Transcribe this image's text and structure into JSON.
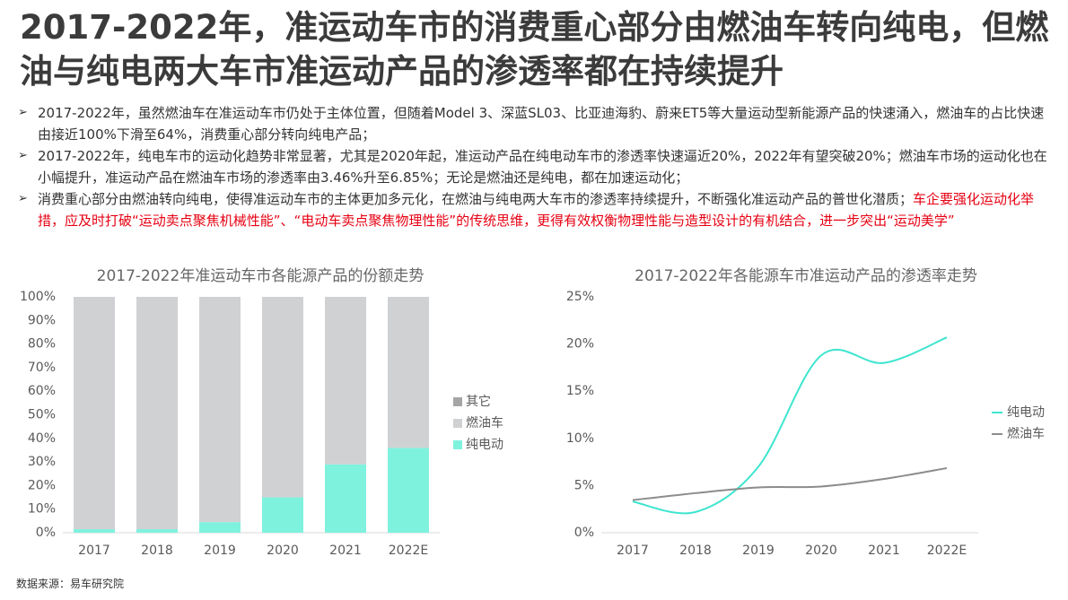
{
  "title": "2017-2022年，准运动车市的消费重心部分由燃油车转向纯电，但燃油与纯电两大车市准运动产品的渗透率都在持续提升",
  "bullets": [
    {
      "parts": [
        "2017-2022年，虽然燃油车在准运动车市仍处于主体位置，但随着Model 3、深蓝SL03、比亚迪海豹、蔚来ET5等大量运动型新能源产品的快速涌入，燃油车的占比快速由接近100%下滑至64%，消费重心部分转向纯电产品；"
      ]
    },
    {
      "parts": [
        "2017-2022年，纯电车市的运动化趋势非常显著，尤其是2020年起，准运动产品在纯电动车市的渗透率快速逼近20%，2022年有望突破20%；燃油车市场的运动化也在小幅提升，准运动产品在燃油车市场的渗透率由3.46%升至6.85%；无论是燃油还是纯电，都在加速运动化；"
      ]
    },
    {
      "parts": [
        "消费重心部分由燃油转向纯电，使得准运动车市的主体更加多元化，在燃油与纯电两大车市的渗透率持续提升，不断强化准运动产品的普世化潜质；",
        "车企要强化运动化举措，应及时打破“运动卖点聚焦机械性能”、“电动车卖点聚焦物理性能”的传统思维，更得有效权衡物理性能与造型设计的有机结合，进一步突出“运动美学”"
      ]
    }
  ],
  "source": "数据来源：易车研究院",
  "chart_data": [
    {
      "type": "stacked-bar",
      "title": "2017-2022年准运动车市各能源产品的份额走势",
      "categories": [
        "2017",
        "2018",
        "2019",
        "2020",
        "2021",
        "2022E"
      ],
      "series": [
        {
          "name": "纯电动",
          "color": "#7ff2de",
          "values": [
            1.5,
            1.5,
            4.5,
            15,
            29,
            36
          ]
        },
        {
          "name": "燃油车",
          "color": "#d0d1d3",
          "values": [
            98.5,
            98.5,
            95.5,
            85,
            71,
            64
          ]
        },
        {
          "name": "其它",
          "color": "#a5a5a5",
          "values": [
            0,
            0,
            0,
            0,
            0,
            0
          ]
        }
      ],
      "ylim": [
        0,
        100
      ],
      "yticks": [
        {
          "value": 0,
          "label": "0%"
        },
        {
          "value": 10,
          "label": "10%"
        },
        {
          "value": 20,
          "label": "20%"
        },
        {
          "value": 30,
          "label": "30%"
        },
        {
          "value": 40,
          "label": "40%"
        },
        {
          "value": 50,
          "label": "50%"
        },
        {
          "value": 60,
          "label": "60%"
        },
        {
          "value": 70,
          "label": "70%"
        },
        {
          "value": 80,
          "label": "80%"
        },
        {
          "value": 90,
          "label": "90%"
        },
        {
          "value": 100,
          "label": "100%"
        }
      ],
      "grid": false,
      "legend": "right"
    },
    {
      "type": "line",
      "title": "2017-2022年各能源车市准运动产品的渗透率走势",
      "categories": [
        "2017",
        "2018",
        "2019",
        "2020",
        "2021",
        "2022E"
      ],
      "series": [
        {
          "name": "纯电动",
          "color": "#3ee5cf",
          "values": [
            3.3,
            2.2,
            7,
            18.8,
            18,
            20.7
          ]
        },
        {
          "name": "燃油车",
          "color": "#8c8c8c",
          "values": [
            3.46,
            4.2,
            4.8,
            4.9,
            5.7,
            6.85
          ]
        }
      ],
      "ylim": [
        0,
        25
      ],
      "yticks": [
        {
          "value": 0,
          "label": "0%"
        },
        {
          "value": 5,
          "label": "5%"
        },
        {
          "value": 10,
          "label": "10%"
        },
        {
          "value": 15,
          "label": "15%"
        },
        {
          "value": 20,
          "label": "20%"
        },
        {
          "value": 25,
          "label": "25%"
        }
      ],
      "grid": false,
      "legend": "right"
    }
  ]
}
